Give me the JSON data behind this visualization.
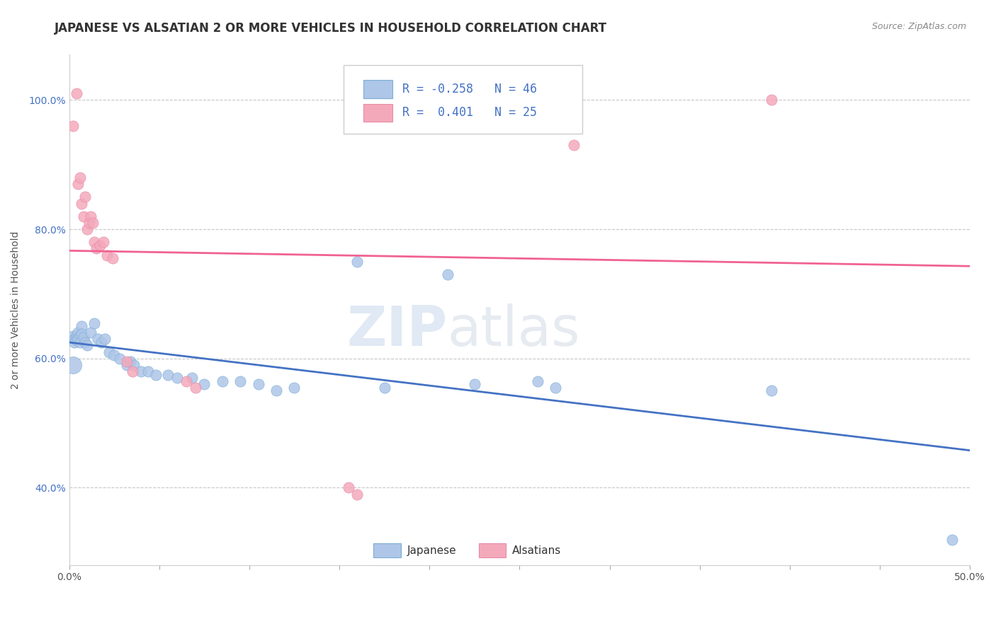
{
  "title": "JAPANESE VS ALSATIAN 2 OR MORE VEHICLES IN HOUSEHOLD CORRELATION CHART",
  "source_text": "Source: ZipAtlas.com",
  "ylabel": "2 or more Vehicles in Household",
  "xlim": [
    0.0,
    0.5
  ],
  "ylim": [
    0.28,
    1.07
  ],
  "xticks": [
    0.0,
    0.05,
    0.1,
    0.15,
    0.2,
    0.25,
    0.3,
    0.35,
    0.4,
    0.45,
    0.5
  ],
  "xticklabels": [
    "0.0%",
    "",
    "",
    "",
    "",
    "",
    "",
    "",
    "",
    "",
    "50.0%"
  ],
  "ytick_positions": [
    0.4,
    0.6,
    0.8,
    1.0
  ],
  "yticklabels": [
    "40.0%",
    "60.0%",
    "80.0%",
    "100.0%"
  ],
  "legend_r_japanese": "-0.258",
  "legend_n_japanese": "46",
  "legend_r_alsatian": "0.401",
  "legend_n_alsatian": "25",
  "japanese_color": "#aec6e8",
  "alsatian_color": "#f4a9bb",
  "japanese_line_color": "#4472c4",
  "alsatian_line_color": "#f06292",
  "japanese_points": [
    [
      0.002,
      0.635
    ],
    [
      0.003,
      0.63
    ],
    [
      0.003,
      0.625
    ],
    [
      0.004,
      0.635
    ],
    [
      0.004,
      0.628
    ],
    [
      0.005,
      0.64
    ],
    [
      0.005,
      0.63
    ],
    [
      0.006,
      0.635
    ],
    [
      0.006,
      0.625
    ],
    [
      0.007,
      0.65
    ],
    [
      0.007,
      0.638
    ],
    [
      0.008,
      0.633
    ],
    [
      0.002,
      0.59
    ],
    [
      0.009,
      0.625
    ],
    [
      0.01,
      0.62
    ],
    [
      0.012,
      0.64
    ],
    [
      0.014,
      0.655
    ],
    [
      0.016,
      0.63
    ],
    [
      0.018,
      0.625
    ],
    [
      0.02,
      0.63
    ],
    [
      0.022,
      0.61
    ],
    [
      0.025,
      0.605
    ],
    [
      0.028,
      0.6
    ],
    [
      0.032,
      0.59
    ],
    [
      0.034,
      0.595
    ],
    [
      0.036,
      0.59
    ],
    [
      0.04,
      0.58
    ],
    [
      0.044,
      0.58
    ],
    [
      0.048,
      0.575
    ],
    [
      0.055,
      0.575
    ],
    [
      0.06,
      0.57
    ],
    [
      0.068,
      0.57
    ],
    [
      0.075,
      0.56
    ],
    [
      0.085,
      0.565
    ],
    [
      0.095,
      0.565
    ],
    [
      0.105,
      0.56
    ],
    [
      0.115,
      0.55
    ],
    [
      0.125,
      0.555
    ],
    [
      0.16,
      0.75
    ],
    [
      0.175,
      0.555
    ],
    [
      0.21,
      0.73
    ],
    [
      0.225,
      0.56
    ],
    [
      0.26,
      0.565
    ],
    [
      0.27,
      0.555
    ],
    [
      0.39,
      0.55
    ],
    [
      0.49,
      0.32
    ]
  ],
  "alsatian_points": [
    [
      0.002,
      0.96
    ],
    [
      0.004,
      1.01
    ],
    [
      0.005,
      0.87
    ],
    [
      0.006,
      0.88
    ],
    [
      0.007,
      0.84
    ],
    [
      0.008,
      0.82
    ],
    [
      0.009,
      0.85
    ],
    [
      0.01,
      0.8
    ],
    [
      0.011,
      0.81
    ],
    [
      0.012,
      0.82
    ],
    [
      0.013,
      0.81
    ],
    [
      0.014,
      0.78
    ],
    [
      0.015,
      0.77
    ],
    [
      0.017,
      0.775
    ],
    [
      0.019,
      0.78
    ],
    [
      0.021,
      0.76
    ],
    [
      0.024,
      0.755
    ],
    [
      0.032,
      0.595
    ],
    [
      0.035,
      0.58
    ],
    [
      0.065,
      0.565
    ],
    [
      0.07,
      0.555
    ],
    [
      0.155,
      0.4
    ],
    [
      0.16,
      0.39
    ],
    [
      0.28,
      0.93
    ],
    [
      0.39,
      1.0
    ]
  ],
  "title_fontsize": 12,
  "axis_label_fontsize": 10,
  "tick_fontsize": 10,
  "legend_fontsize": 12
}
